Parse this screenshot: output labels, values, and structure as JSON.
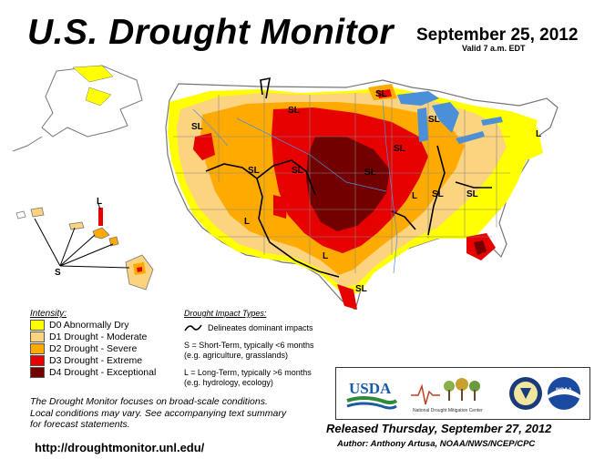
{
  "header": {
    "title": "U.S. Drought Monitor",
    "date": "September 25, 2012",
    "valid": "Valid 7 a.m. EDT"
  },
  "legend": {
    "title": "Intensity:",
    "items": [
      {
        "label": "D0 Abnormally Dry",
        "color": "#ffff00"
      },
      {
        "label": "D1 Drought - Moderate",
        "color": "#fcd37f"
      },
      {
        "label": "D2 Drought - Severe",
        "color": "#ffaa00"
      },
      {
        "label": "D3 Drought - Extreme",
        "color": "#e60000"
      },
      {
        "label": "D4 Drought - Exceptional",
        "color": "#730000"
      }
    ]
  },
  "impact": {
    "title": "Drought Impact Types:",
    "line_label": "Delineates dominant impacts",
    "short_term": "S = Short-Term, typically <6 months",
    "short_term_eg": "(e.g. agriculture, grasslands)",
    "long_term": "L = Long-Term, typically >6 months",
    "long_term_eg": "(e.g. hydrology, ecology)"
  },
  "map_labels": {
    "sl": "SL",
    "l": "L",
    "s": "S"
  },
  "colors": {
    "water": "#4a90d9",
    "land": "#ffffff",
    "border": "#777777",
    "impact_line": "#000000"
  },
  "footer": {
    "note_1": "The Drought Monitor focuses on broad-scale conditions.",
    "note_2": "Local conditions may vary. See accompanying text summary",
    "note_3": "for forecast statements.",
    "url": "http://droughtmonitor.unl.edu/",
    "released": "Released Thursday, September 27, 2012",
    "author": "Author: Anthony Artusa, NOAA/NWS/NCEP/CPC"
  },
  "logos": {
    "usda": "USDA",
    "ndmc": "National Drought Mitigation Center",
    "doc_icon": "department-of-commerce-seal",
    "noaa": "NOAA"
  }
}
